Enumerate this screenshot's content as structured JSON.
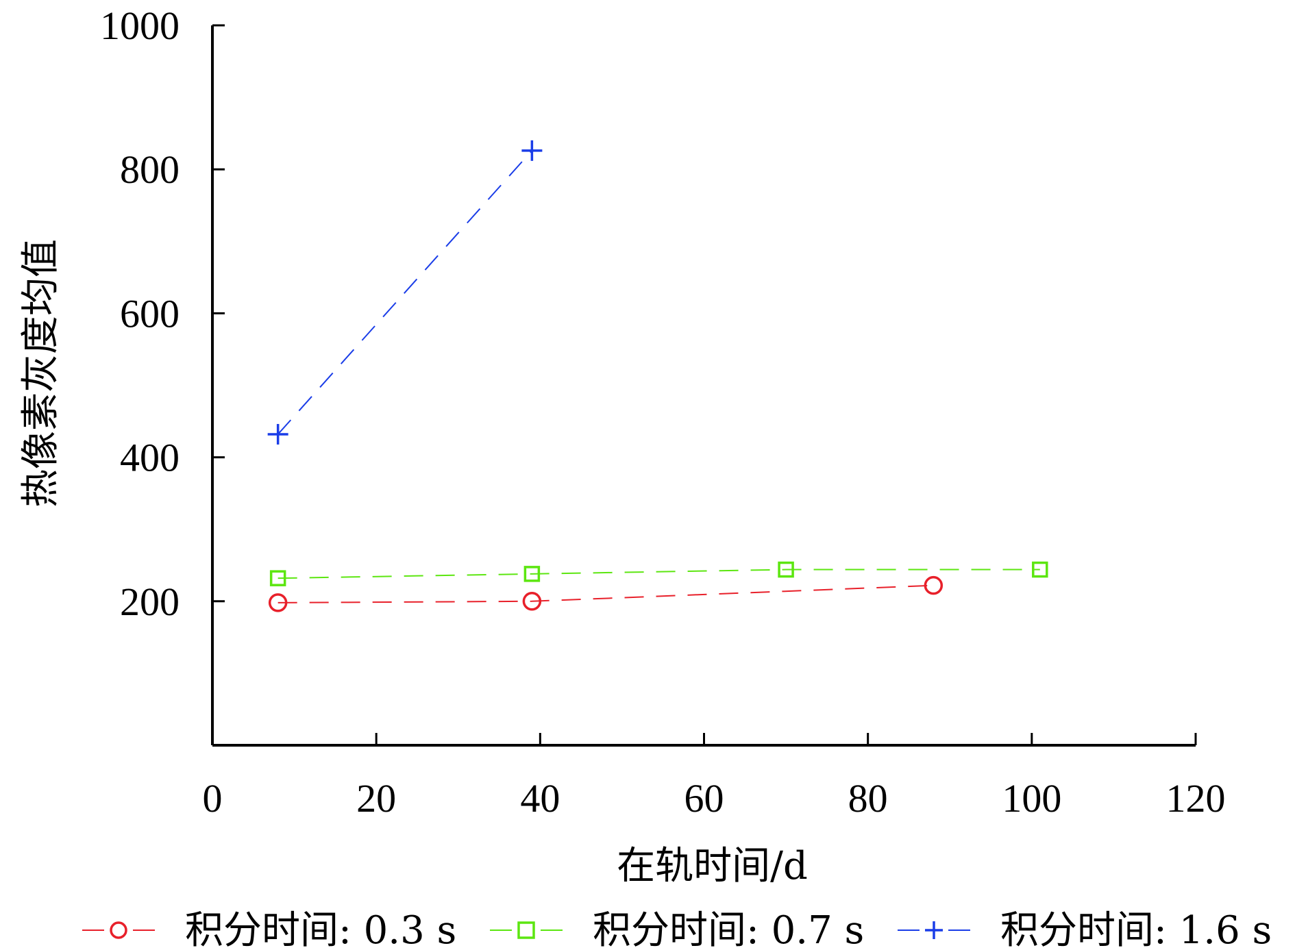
{
  "chart_data": {
    "type": "line",
    "title": "",
    "xlabel": "在轨时间/d",
    "ylabel": "热像素灰度均值",
    "xlim": [
      0,
      120
    ],
    "ylim": [
      0,
      1000
    ],
    "x_ticks": [
      "0",
      "20",
      "40",
      "60",
      "80",
      "100",
      "120"
    ],
    "y_ticks": [
      "200",
      "400",
      "600",
      "800",
      "1000"
    ],
    "grid": false,
    "legend_position": "bottom",
    "series": [
      {
        "name": "积分时间: 0.3 s",
        "color": "#e8202a",
        "marker": "circle",
        "line_style": "dashed",
        "x": [
          8,
          39,
          88
        ],
        "y": [
          198,
          200,
          222
        ]
      },
      {
        "name": "积分时间: 0.7 s",
        "color": "#5ce610",
        "marker": "square",
        "line_style": "dashed",
        "x": [
          8,
          39,
          70,
          101
        ],
        "y": [
          232,
          238,
          244,
          244
        ]
      },
      {
        "name": "积分时间: 1.6 s",
        "color": "#1a3de8",
        "marker": "plus",
        "line_style": "dashed",
        "x": [
          8,
          39
        ],
        "y": [
          432,
          826
        ]
      }
    ]
  }
}
